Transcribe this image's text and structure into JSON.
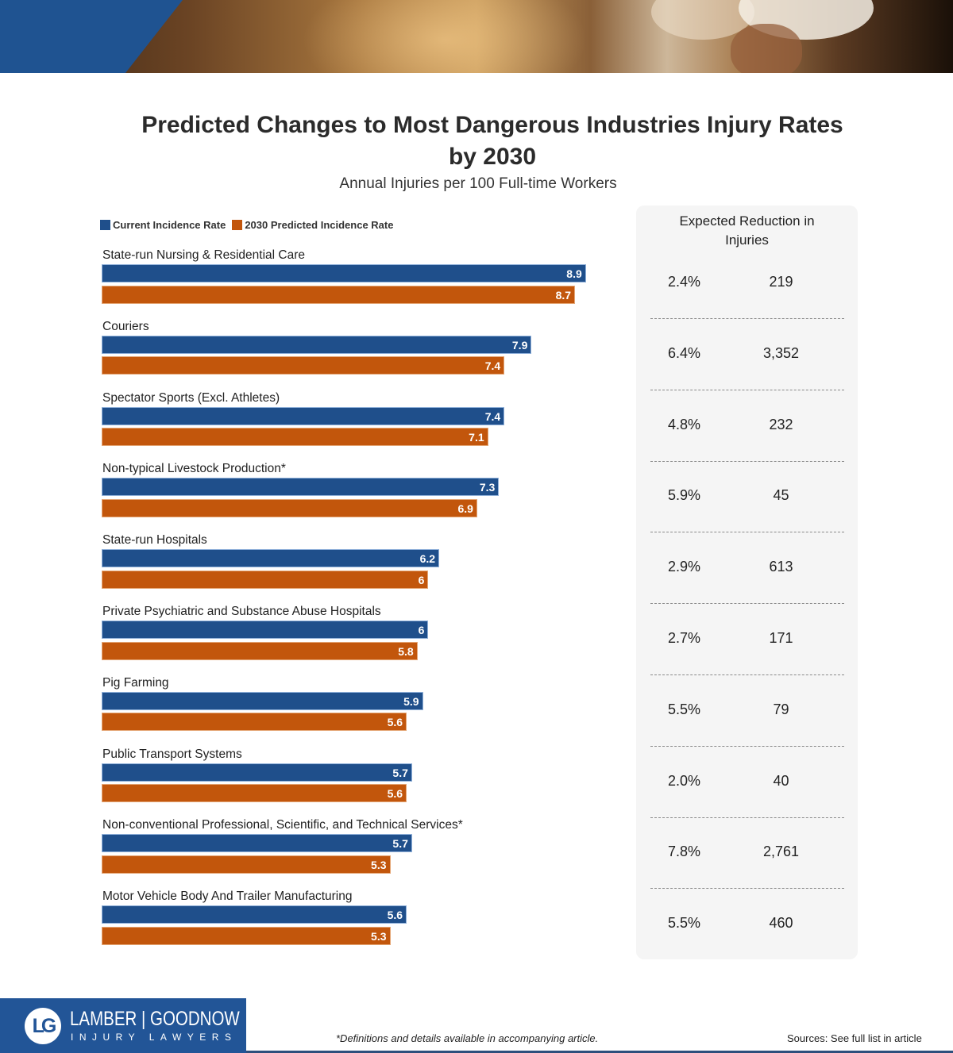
{
  "header": {
    "banner_image": "construction-workers-in-hard-hats-photo",
    "accent_color": "#1f5391"
  },
  "title": "Predicted Changes to Most Dangerous Industries Injury Rates by 2030",
  "subtitle": "Annual Injuries per 100 Full-time Workers",
  "panel": {
    "heading": "Expected Reduction in Injuries",
    "background_color": "#f5f5f5"
  },
  "chart_data": {
    "type": "bar",
    "orientation": "horizontal",
    "title": "Predicted Changes to Most Dangerous Industries Injury Rates by 2030",
    "subtitle": "Annual Injuries per 100 Full-time Workers",
    "xlabel": "",
    "ylabel": "",
    "xlim": [
      0,
      8.9
    ],
    "grid": false,
    "legend_position": "top-left",
    "categories": [
      "State-run Nursing & Residential Care",
      "Couriers",
      "Spectator Sports (Excl. Athletes)",
      "Non-typical Livestock Production*",
      "State-run Hospitals",
      "Private Psychiatric and Substance Abuse Hospitals",
      "Pig Farming",
      "Public Transport Systems",
      "Non-conventional Professional, Scientific, and Technical Services*",
      "Motor Vehicle Body And Trailer Manufacturing"
    ],
    "series": [
      {
        "name": "Current Incidence Rate",
        "color": "#1f4f8b",
        "values": [
          8.9,
          7.9,
          7.4,
          7.3,
          6.2,
          6,
          5.9,
          5.7,
          5.7,
          5.6
        ],
        "labels": [
          "8.9",
          "7.9",
          "7.4",
          "7.3",
          "6.2",
          "6",
          "5.9",
          "5.7",
          "5.7",
          "5.6"
        ]
      },
      {
        "name": "2030 Predicted Incidence Rate",
        "color": "#c2560c",
        "values": [
          8.7,
          7.4,
          7.1,
          6.9,
          6,
          5.8,
          5.6,
          5.6,
          5.3,
          5.3
        ],
        "labels": [
          "8.7",
          "7.4",
          "7.1",
          "6.9",
          "6",
          "5.8",
          "5.6",
          "5.6",
          "5.3",
          "5.3"
        ]
      }
    ],
    "expected_reduction": {
      "heading": "Expected Reduction in Injuries",
      "percent": [
        "2.4%",
        "6.4%",
        "4.8%",
        "5.9%",
        "2.9%",
        "2.7%",
        "5.5%",
        "2.0%",
        "7.8%",
        "5.5%"
      ],
      "count": [
        "219",
        "3,352",
        "232",
        "45",
        "613",
        "171",
        "79",
        "40",
        "2,761",
        "460"
      ]
    }
  },
  "footer": {
    "logo_mark": "LG",
    "logo_name": "LAMBER | GOODNOW",
    "logo_tagline": "INJURY LAWYERS",
    "footnote": "*Definitions and details available in accompanying article.",
    "sources": "Sources: See full list in article",
    "brand_color": "#225597"
  }
}
